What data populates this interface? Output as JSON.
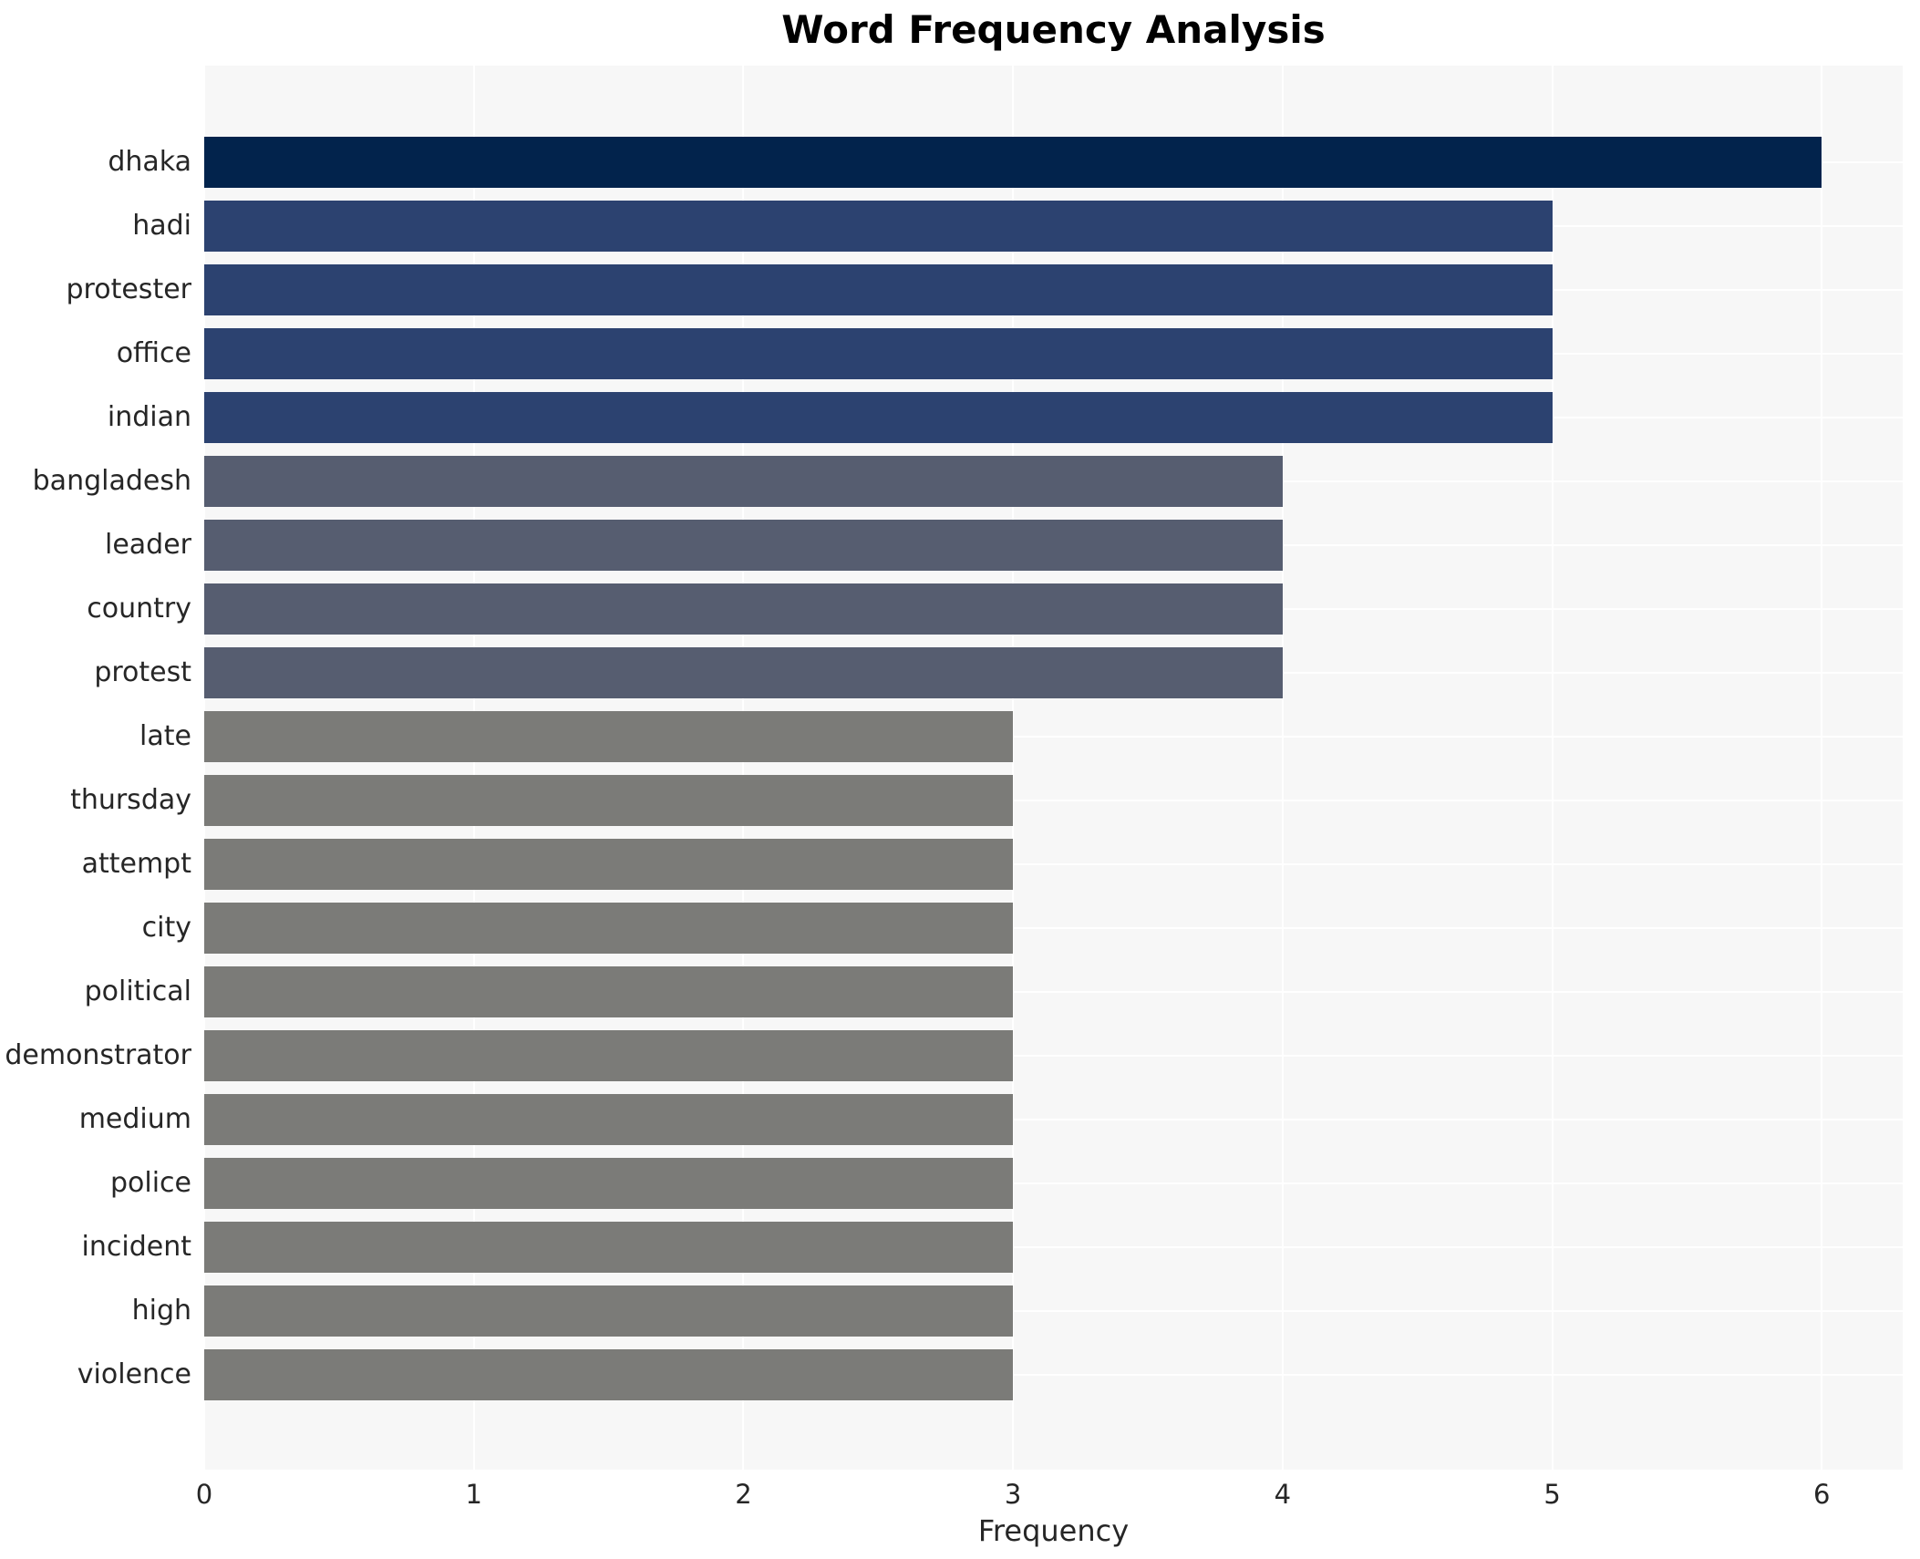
{
  "chart_data": {
    "type": "bar",
    "orientation": "horizontal",
    "title": "Word Frequency Analysis",
    "xlabel": "Frequency",
    "ylabel": "",
    "categories": [
      "dhaka",
      "hadi",
      "protester",
      "office",
      "indian",
      "bangladesh",
      "leader",
      "country",
      "protest",
      "late",
      "thursday",
      "attempt",
      "city",
      "political",
      "demonstrator",
      "medium",
      "police",
      "incident",
      "high",
      "violence"
    ],
    "values": [
      6,
      5,
      5,
      5,
      5,
      4,
      4,
      4,
      4,
      3,
      3,
      3,
      3,
      3,
      3,
      3,
      3,
      3,
      3,
      3
    ],
    "xticks": [
      0,
      1,
      2,
      3,
      4,
      5,
      6
    ],
    "xlim": [
      0,
      6.3
    ],
    "grid": true,
    "legend": false,
    "colors": {
      "plot_background": "#f7f7f7",
      "figure_background": "#ffffff",
      "gridline": "#ffffff",
      "text": "#262626",
      "title_text": "#000000",
      "bar_value_6": "#02234c",
      "bar_value_5": "#2c4270",
      "bar_value_4": "#565d70",
      "bar_value_3": "#7b7b78"
    }
  }
}
